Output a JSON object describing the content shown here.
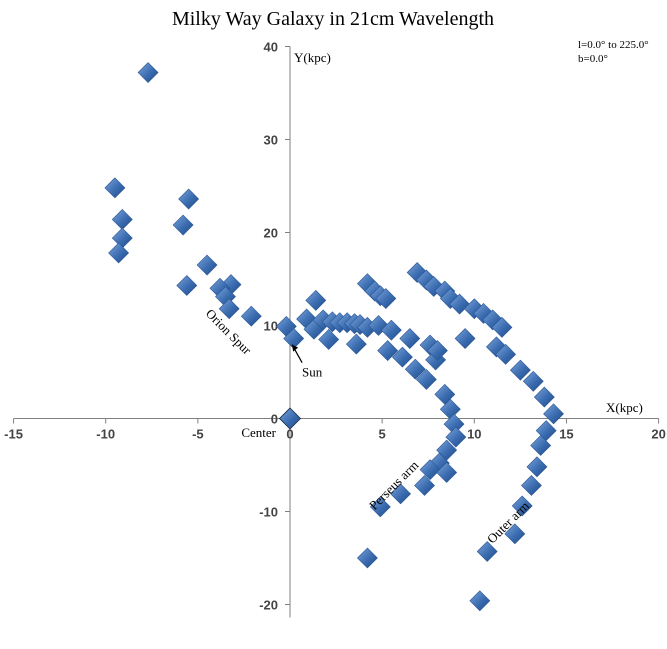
{
  "chart_data": {
    "type": "scatter",
    "title": "Milky Way Galaxy in 21cm Wavelength",
    "xlabel": "X(kpc)",
    "ylabel": "Y(kpc)",
    "xlim": [
      -15,
      20
    ],
    "ylim": [
      -20,
      40
    ],
    "x_ticks": [
      -15,
      -10,
      -5,
      0,
      5,
      10,
      15,
      20
    ],
    "y_ticks": [
      -20,
      -10,
      0,
      10,
      20,
      30,
      40
    ],
    "grid": false,
    "legend": "none",
    "notes": [
      "l=0.0° to 225.0°",
      "b=0.0°"
    ],
    "marker_color": "#3a6cb0",
    "marker_shape": "diamond",
    "center_marker_color": "#000000",
    "series": [
      {
        "points": [
          [
            -7.7,
            37.2
          ],
          [
            -9.5,
            24.8
          ],
          [
            -5.5,
            23.6
          ],
          [
            -9.1,
            21.4
          ],
          [
            -5.8,
            20.8
          ],
          [
            -9.1,
            19.4
          ],
          [
            -9.3,
            17.8
          ],
          [
            -4.5,
            16.5
          ],
          [
            -5.6,
            14.3
          ],
          [
            -3.2,
            14.4
          ],
          [
            -3.8,
            14.0
          ],
          [
            -3.5,
            13.1
          ],
          [
            -3.3,
            11.8
          ],
          [
            -2.1,
            11.0
          ],
          [
            -0.2,
            9.9
          ],
          [
            0.2,
            8.6
          ],
          [
            0.9,
            10.7
          ],
          [
            1.4,
            12.7
          ],
          [
            1.3,
            9.6
          ],
          [
            2.1,
            8.5
          ],
          [
            1.8,
            10.6
          ],
          [
            2.3,
            10.4
          ],
          [
            2.7,
            10.3
          ],
          [
            3.1,
            10.3
          ],
          [
            3.5,
            10.2
          ],
          [
            3.8,
            10.1
          ],
          [
            4.2,
            9.8
          ],
          [
            3.6,
            8.0
          ],
          [
            4.2,
            14.5
          ],
          [
            4.6,
            13.7
          ],
          [
            4.9,
            13.2
          ],
          [
            5.2,
            12.9
          ],
          [
            4.8,
            10.0
          ],
          [
            5.5,
            9.5
          ],
          [
            5.3,
            7.3
          ],
          [
            6.1,
            6.6
          ],
          [
            6.5,
            8.6
          ],
          [
            6.8,
            5.3
          ],
          [
            7.4,
            4.2
          ],
          [
            7.6,
            7.9
          ],
          [
            7.9,
            6.3
          ],
          [
            8.0,
            7.3
          ],
          [
            8.4,
            2.6
          ],
          [
            8.7,
            1.0
          ],
          [
            8.9,
            -0.6
          ],
          [
            9.0,
            -2.0
          ],
          [
            8.5,
            -3.4
          ],
          [
            8.1,
            -4.8
          ],
          [
            7.6,
            -5.5
          ],
          [
            7.3,
            -7.2
          ],
          [
            8.5,
            -5.8
          ],
          [
            6.0,
            -8.1
          ],
          [
            4.9,
            -9.5
          ],
          [
            4.2,
            -15.0
          ],
          [
            6.9,
            15.7
          ],
          [
            7.4,
            14.9
          ],
          [
            7.8,
            14.2
          ],
          [
            8.4,
            13.7
          ],
          [
            8.7,
            12.9
          ],
          [
            9.2,
            12.3
          ],
          [
            9.5,
            8.6
          ],
          [
            10.0,
            11.8
          ],
          [
            10.5,
            11.3
          ],
          [
            11.0,
            10.6
          ],
          [
            11.5,
            9.8
          ],
          [
            11.2,
            7.7
          ],
          [
            11.7,
            6.9
          ],
          [
            12.5,
            5.2
          ],
          [
            13.2,
            4.0
          ],
          [
            13.8,
            2.3
          ],
          [
            14.3,
            0.5
          ],
          [
            13.9,
            -1.3
          ],
          [
            13.6,
            -2.9
          ],
          [
            13.4,
            -5.2
          ],
          [
            13.1,
            -7.2
          ],
          [
            12.6,
            -9.4
          ],
          [
            12.2,
            -12.4
          ],
          [
            10.7,
            -14.3
          ],
          [
            10.3,
            -19.6
          ]
        ]
      }
    ],
    "special_points": [
      {
        "label": "Center",
        "x": 0.0,
        "y": 0.0
      }
    ],
    "annotations": [
      {
        "text": "Sun",
        "x": 1.2,
        "y": 4.5
      },
      {
        "text": "Orion Spur",
        "x": -3.5,
        "y": 9.0,
        "rotate": 45
      },
      {
        "text": "Perseus arm",
        "x": 5.8,
        "y": -7.5,
        "rotate": -45
      },
      {
        "text": "Outer arm",
        "x": 12.0,
        "y": -11.5,
        "rotate": -45
      },
      {
        "text": "Center",
        "x": -1.7,
        "y": -2.0
      }
    ]
  }
}
